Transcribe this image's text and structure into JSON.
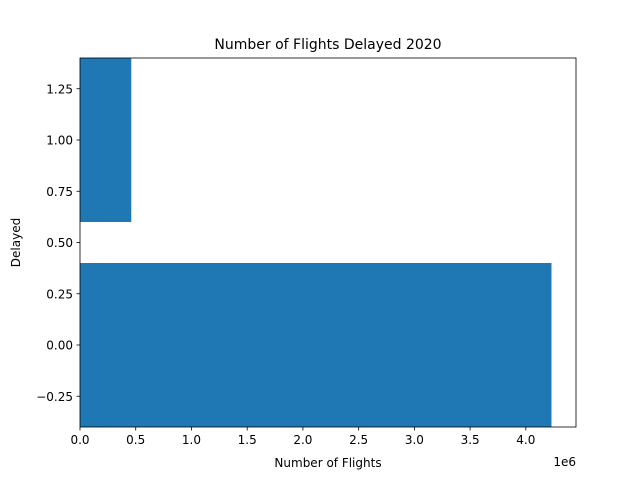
{
  "chart_data": {
    "type": "bar",
    "orientation": "horizontal",
    "title": "Number of Flights Delayed 2020",
    "xlabel": "Number of Flights",
    "ylabel": "Delayed",
    "x_offset_label": "1e6",
    "x_scale": 1000000,
    "xlim": [
      0,
      4450000
    ],
    "ylim": [
      -0.4,
      1.4
    ],
    "bar_height": 0.8,
    "bars": [
      {
        "y": 0,
        "value": 4230000
      },
      {
        "y": 1,
        "value": 460000
      }
    ],
    "xticks": [
      {
        "value": 0,
        "label": "0.0"
      },
      {
        "value": 500000,
        "label": "0.5"
      },
      {
        "value": 1000000,
        "label": "1.0"
      },
      {
        "value": 1500000,
        "label": "1.5"
      },
      {
        "value": 2000000,
        "label": "2.0"
      },
      {
        "value": 2500000,
        "label": "2.5"
      },
      {
        "value": 3000000,
        "label": "3.0"
      },
      {
        "value": 3500000,
        "label": "3.5"
      },
      {
        "value": 4000000,
        "label": "4.0"
      }
    ],
    "yticks": [
      {
        "value": -0.25,
        "label": "−0.25"
      },
      {
        "value": 0.0,
        "label": "0.00"
      },
      {
        "value": 0.25,
        "label": "0.25"
      },
      {
        "value": 0.5,
        "label": "0.50"
      },
      {
        "value": 0.75,
        "label": "0.75"
      },
      {
        "value": 1.0,
        "label": "1.00"
      },
      {
        "value": 1.25,
        "label": "1.25"
      }
    ],
    "bar_color": "#1f77b4",
    "grid": false,
    "legend": "none"
  }
}
